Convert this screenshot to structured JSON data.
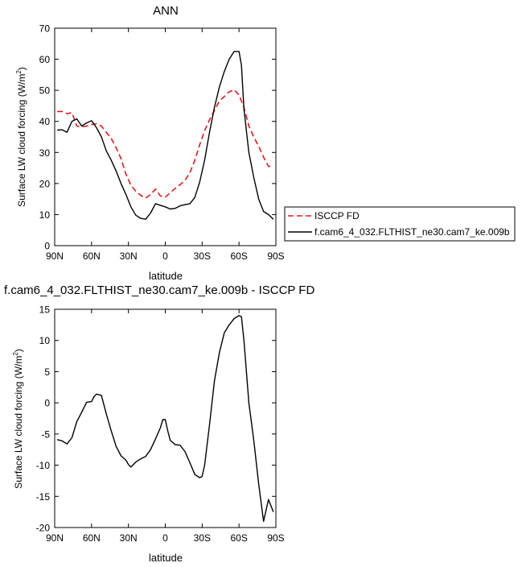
{
  "chart_data": [
    {
      "type": "line",
      "title": "ANN",
      "xlabel": "latitude",
      "ylabel": "Surface LW cloud forcing (W/m",
      "ylabel_sup": "2",
      "ylabel_end": ")",
      "xlim": [
        90,
        -90
      ],
      "ylim": [
        0,
        70
      ],
      "x_ticks": [
        90,
        60,
        30,
        0,
        -30,
        -60,
        -90
      ],
      "x_tick_labels": [
        "90N",
        "60N",
        "30N",
        "0",
        "30S",
        "60S",
        "90S"
      ],
      "y_ticks": [
        0,
        10,
        20,
        30,
        40,
        50,
        60,
        70
      ],
      "y_tick_labels": [
        "0",
        "10",
        "20",
        "30",
        "40",
        "50",
        "60",
        "70"
      ],
      "grid": false,
      "legend_position": "right",
      "series": [
        {
          "name": "ISCCP FD",
          "color": "#e31a1c",
          "dash": "dashed",
          "x": [
            88,
            84,
            80,
            76,
            72,
            68,
            64,
            60,
            56,
            52,
            48,
            44,
            40,
            36,
            32,
            28,
            24,
            20,
            16,
            12,
            8,
            4,
            0,
            -4,
            -8,
            -12,
            -16,
            -20,
            -24,
            -28,
            -32,
            -36,
            -40,
            -44,
            -48,
            -52,
            -56,
            -60,
            -64,
            -68,
            -72,
            -76,
            -80,
            -84,
            -88
          ],
          "y": [
            43.2,
            43.2,
            42.5,
            42.8,
            38.5,
            38.2,
            38.5,
            39.0,
            39.2,
            38.5,
            36.5,
            34.5,
            31.5,
            28.0,
            23.0,
            19.5,
            17.5,
            16.2,
            15.3,
            16.5,
            18.2,
            16.0,
            15.6,
            17.0,
            18.4,
            19.6,
            21.0,
            23.5,
            27.5,
            32.5,
            37.0,
            40.5,
            43.5,
            46.5,
            48.0,
            49.5,
            50.2,
            48.5,
            44.5,
            38.5,
            35.0,
            32.0,
            28.5,
            25.5,
            25.5
          ]
        },
        {
          "name": "f.cam6_4_032.FLTHIST_ne30.cam7_ke.009b",
          "color": "#000000",
          "dash": "solid",
          "x": [
            88,
            84,
            80,
            76,
            72,
            68,
            64,
            60,
            56,
            52,
            48,
            44,
            40,
            36,
            32,
            28,
            24,
            20,
            16,
            12,
            8,
            4,
            0,
            -4,
            -8,
            -12,
            -16,
            -20,
            -24,
            -28,
            -32,
            -36,
            -40,
            -44,
            -48,
            -52,
            -56,
            -60,
            -62,
            -64,
            -68,
            -72,
            -76,
            -80,
            -84,
            -88
          ],
          "y": [
            37.2,
            37.3,
            36.5,
            40.0,
            40.8,
            38.5,
            39.5,
            40.2,
            38.0,
            35.0,
            30.5,
            27.5,
            24.0,
            20.0,
            16.5,
            12.5,
            9.8,
            8.8,
            8.5,
            10.5,
            13.5,
            13.0,
            12.5,
            11.8,
            12.0,
            12.8,
            13.2,
            13.5,
            15.5,
            20.5,
            27.5,
            36.5,
            44.5,
            51.0,
            56.0,
            60.0,
            62.5,
            62.5,
            58.0,
            44.0,
            30.0,
            22.0,
            15.0,
            11.0,
            10.0,
            8.5
          ]
        }
      ]
    },
    {
      "type": "line",
      "title": "f.cam6_4_032.FLTHIST_ne30.cam7_ke.009b - ISCCP FD",
      "xlabel": "latitude",
      "ylabel": "Surface LW cloud forcing (W/m",
      "ylabel_sup": "2",
      "ylabel_end": ")",
      "xlim": [
        90,
        -90
      ],
      "ylim": [
        -20,
        15
      ],
      "x_ticks": [
        90,
        60,
        30,
        0,
        -30,
        -60,
        -90
      ],
      "x_tick_labels": [
        "90N",
        "60N",
        "30N",
        "0",
        "30S",
        "60S",
        "90S"
      ],
      "y_ticks": [
        -20,
        -15,
        -10,
        -5,
        0,
        5,
        10,
        15
      ],
      "y_tick_labels": [
        "-20",
        "-15",
        "-10",
        "-5",
        "0",
        "5",
        "10",
        "15"
      ],
      "grid": false,
      "series": [
        {
          "color": "#000000",
          "dash": "solid",
          "x": [
            88,
            84,
            80,
            76,
            72,
            68,
            64,
            60,
            58,
            56,
            52,
            48,
            44,
            40,
            36,
            32,
            30,
            28,
            24,
            20,
            16,
            12,
            8,
            4,
            2,
            0,
            -2,
            -4,
            -8,
            -12,
            -16,
            -20,
            -24,
            -28,
            -30,
            -32,
            -36,
            -40,
            -44,
            -48,
            -52,
            -56,
            -60,
            -62,
            -64,
            -68,
            -72,
            -76,
            -80,
            -84,
            -88
          ],
          "y": [
            -5.9,
            -6.1,
            -6.6,
            -5.6,
            -3.0,
            -1.5,
            0.1,
            0.2,
            1.0,
            1.4,
            1.2,
            -1.8,
            -4.5,
            -7.0,
            -8.5,
            -9.2,
            -9.9,
            -10.3,
            -9.5,
            -9.0,
            -8.6,
            -7.5,
            -5.8,
            -4.0,
            -2.7,
            -2.7,
            -4.5,
            -6.0,
            -6.7,
            -6.8,
            -7.8,
            -9.6,
            -11.5,
            -12.0,
            -11.8,
            -10.0,
            -3.5,
            3.5,
            8.0,
            11.2,
            12.5,
            13.5,
            14.0,
            13.8,
            10.0,
            0.0,
            -6.0,
            -13.0,
            -19.0,
            -15.5,
            -17.5
          ]
        }
      ]
    }
  ]
}
